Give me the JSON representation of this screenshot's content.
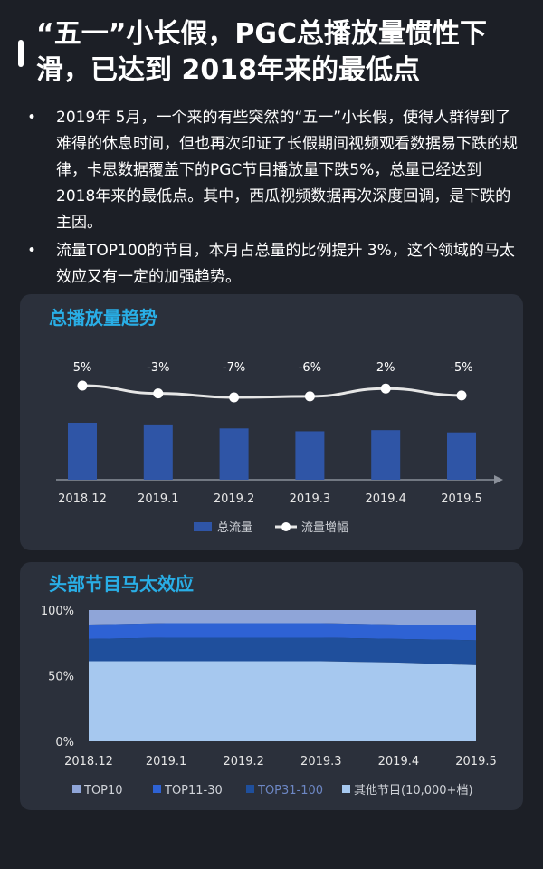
{
  "header": {
    "title": "“五一”小长假，PGC总播放量惯性下滑，已达到 2018年来的最低点"
  },
  "bullets": [
    "2019年 5月，一个来的有些突然的“五一”小长假，使得人群得到了难得的休息时间，但也再次印证了长假期间视频观看数据易下跌的规律，卡思数据覆盖下的PGC节目播放量下跌5%，总量已经达到 2018年来的最低点。其中，西瓜视频数据再次深度回调，是下跌的主因。",
    "流量TOP100的节目，本月占总量的比例提升 3%，这个领域的马太效应又有一定的加强趋势。"
  ],
  "colors": {
    "background": "#1c1f26",
    "panel": "#2b303b",
    "panel_title": "#29aee6",
    "bar": "#2f55a6",
    "line": "#e6e6e6",
    "top10": "#8fa5d8",
    "top11_30": "#2e62d4",
    "top31_100": "#1f4f9c",
    "others": "#a6c8ef"
  },
  "chart_data": [
    {
      "type": "bar",
      "title": "总播放量趋势",
      "categories": [
        "2018.12",
        "2019.1",
        "2019.2",
        "2019.3",
        "2019.4",
        "2019.5"
      ],
      "series": [
        {
          "name": "总流量",
          "type": "bar",
          "values": [
            100,
            97,
            90,
            85,
            87,
            83
          ]
        },
        {
          "name": "流量增幅",
          "type": "line",
          "values": [
            5,
            -3,
            -7,
            -6,
            2,
            -5
          ],
          "labels": [
            "5%",
            "-3%",
            "-7%",
            "-6%",
            "2%",
            "-5%"
          ]
        }
      ],
      "legend": "bottom-center",
      "grid": false
    },
    {
      "type": "area",
      "title": "头部节目马太效应",
      "stacked": true,
      "x": [
        "2018.12",
        "2019.1",
        "2019.2",
        "2019.3",
        "2019.4",
        "2019.5"
      ],
      "yticks": [
        "0%",
        "50%",
        "100%"
      ],
      "ylim": [
        0,
        100
      ],
      "series": [
        {
          "name": "其他节目(10,000+档)",
          "values": [
            61,
            61,
            61,
            61,
            60,
            58
          ]
        },
        {
          "name": "TOP31-100",
          "values": [
            17,
            18,
            18,
            18,
            18,
            19
          ]
        },
        {
          "name": "TOP11-30",
          "values": [
            11,
            11,
            11,
            11,
            11,
            12
          ]
        },
        {
          "name": "TOP10",
          "values": [
            11,
            10,
            10,
            10,
            11,
            11
          ]
        }
      ],
      "legend_order": [
        "TOP10",
        "TOP11-30",
        "TOP31-100",
        "其他节目(10,000+档)"
      ],
      "legend": "bottom-center",
      "grid": false
    }
  ]
}
